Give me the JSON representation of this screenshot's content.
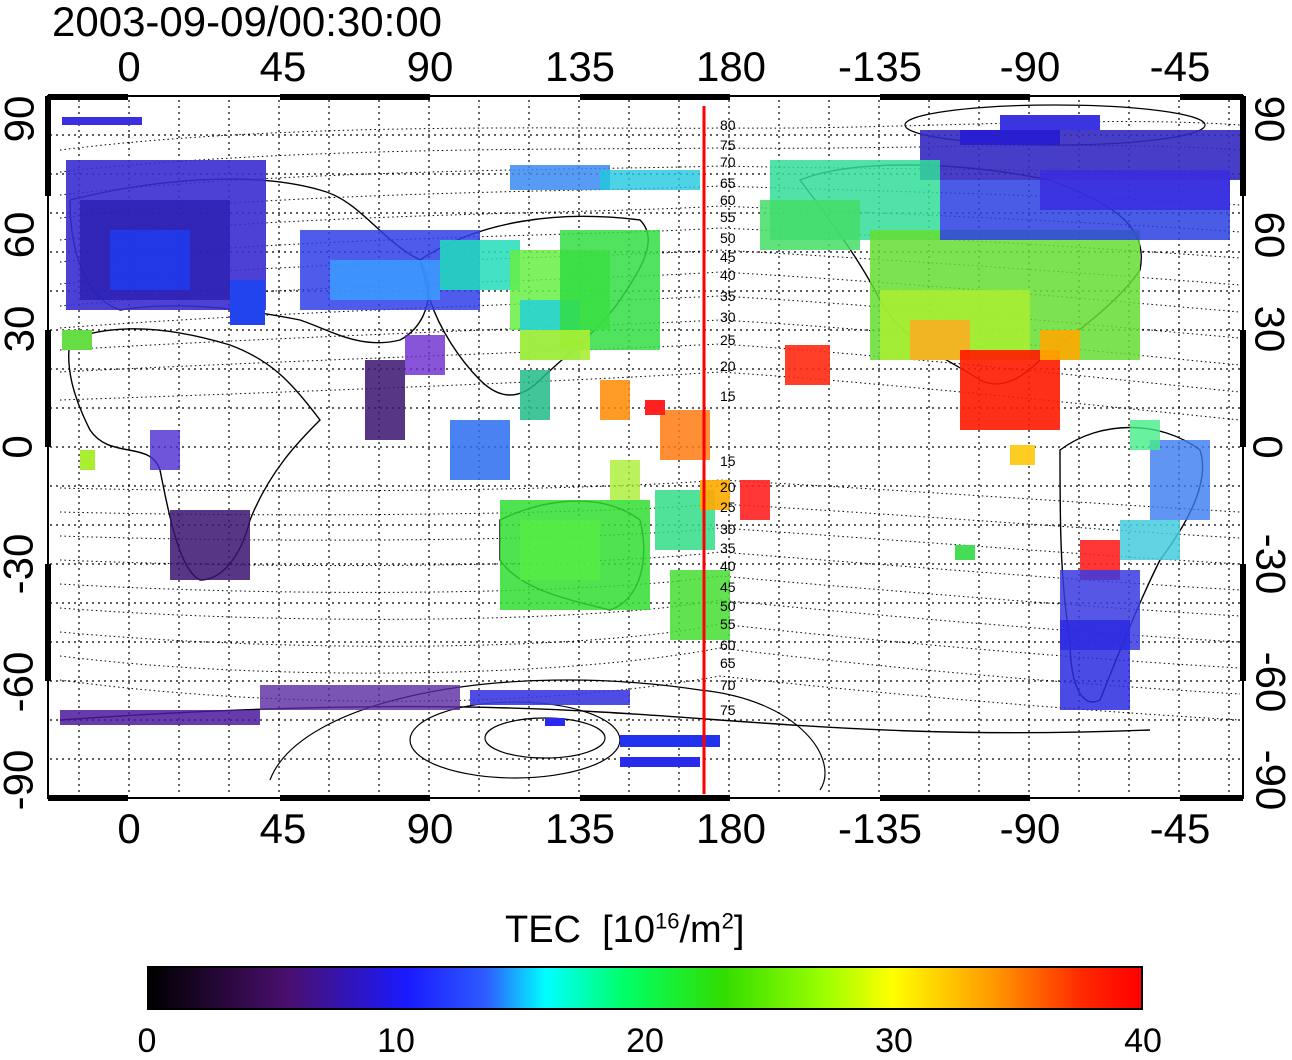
{
  "title": "2003-09-09/00:30:00",
  "axes": {
    "top_ticks": [
      "0",
      "45",
      "90",
      "135",
      "180",
      "-135",
      "-90",
      "-45"
    ],
    "bottom_ticks": [
      "0",
      "45",
      "90",
      "135",
      "180",
      "-135",
      "-90",
      "-45"
    ],
    "left_ticks": [
      "90",
      "60",
      "30",
      "0",
      "-30",
      "-60",
      "-90"
    ],
    "right_ticks": [
      "90",
      "60",
      "30",
      "0",
      "-30",
      "-60",
      "-90"
    ]
  },
  "contour_labels_north": [
    "80",
    "75",
    "70",
    "65",
    "60",
    "55",
    "50",
    "45",
    "40",
    "35",
    "30",
    "25",
    "20",
    "15"
  ],
  "contour_labels_south": [
    "15",
    "20",
    "25",
    "30",
    "35",
    "40",
    "45",
    "50",
    "55",
    "60",
    "65",
    "70",
    "75"
  ],
  "colorbar": {
    "title": "TEC",
    "unit_prefix": "[10",
    "unit_exp": "16",
    "unit_mid": "/m",
    "unit_exp2": "2",
    "unit_suffix": "]",
    "ticks": [
      "0",
      "10",
      "20",
      "30",
      "40"
    ],
    "range": [
      0,
      40
    ]
  },
  "colors": {
    "meridian_line": "#ff0000",
    "frame": "#000000"
  }
}
